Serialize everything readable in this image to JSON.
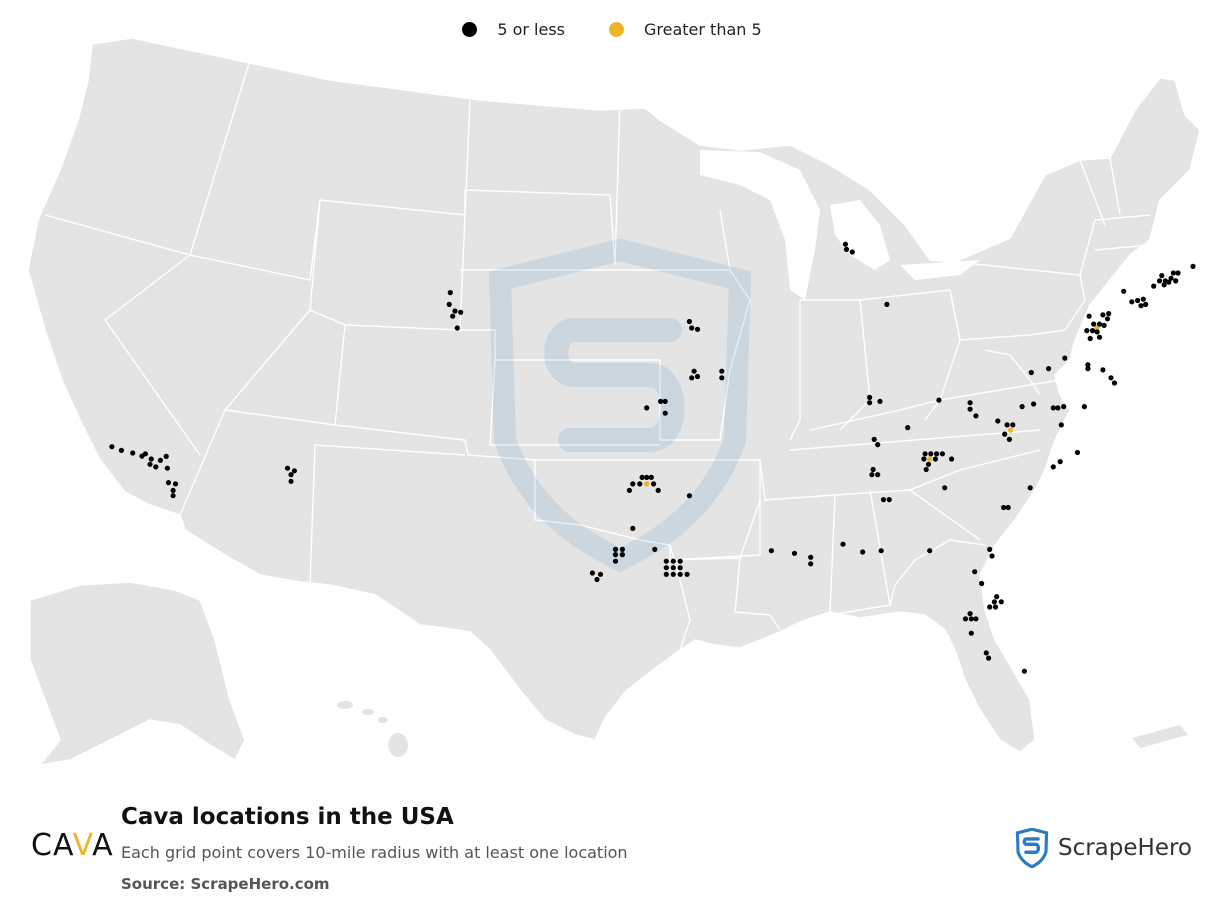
{
  "legend": {
    "items": [
      {
        "label": "5 or less",
        "color": "#000000"
      },
      {
        "label": "Greater than 5",
        "color": "#f0b323"
      }
    ]
  },
  "map": {
    "land_color": "#e4e4e4",
    "border_color": "#ffffff",
    "watermark_icon": "scrapehero-shield-icon"
  },
  "logo": {
    "part1": "CA",
    "accent": "V",
    "part2": "A"
  },
  "title": "Cava locations in the USA",
  "subtitle": "Each grid point covers 10-mile radius with at least one location",
  "source": "Source: ScrapeHero.com",
  "brand": {
    "name": "ScrapeHero",
    "icon": "scrapehero-shield-icon",
    "color": "#2a7bbf"
  },
  "locations": [
    {
      "lat": 34.42,
      "lon": -119.7,
      "cat": "low"
    },
    {
      "lat": 34.28,
      "lon": -119.29,
      "cat": "low"
    },
    {
      "lat": 34.18,
      "lon": -118.8,
      "cat": "low"
    },
    {
      "lat": 34.15,
      "lon": -118.25,
      "cat": "low"
    },
    {
      "lat": 34.06,
      "lon": -118.4,
      "cat": "low"
    },
    {
      "lat": 33.95,
      "lon": -118.0,
      "cat": "low"
    },
    {
      "lat": 33.9,
      "lon": -117.6,
      "cat": "low"
    },
    {
      "lat": 34.05,
      "lon": -117.35,
      "cat": "low"
    },
    {
      "lat": 33.75,
      "lon": -118.05,
      "cat": "low"
    },
    {
      "lat": 33.65,
      "lon": -117.8,
      "cat": "low"
    },
    {
      "lat": 33.6,
      "lon": -117.3,
      "cat": "low"
    },
    {
      "lat": 33.05,
      "lon": -117.25,
      "cat": "low"
    },
    {
      "lat": 33.0,
      "lon": -116.95,
      "cat": "low"
    },
    {
      "lat": 32.75,
      "lon": -117.05,
      "cat": "low"
    },
    {
      "lat": 32.55,
      "lon": -117.05,
      "cat": "low"
    },
    {
      "lat": 33.6,
      "lon": -112.1,
      "cat": "low"
    },
    {
      "lat": 33.5,
      "lon": -111.8,
      "cat": "low"
    },
    {
      "lat": 33.35,
      "lon": -111.95,
      "cat": "low"
    },
    {
      "lat": 33.1,
      "lon": -111.95,
      "cat": "low"
    },
    {
      "lat": 40.3,
      "lon": -105.05,
      "cat": "low"
    },
    {
      "lat": 39.85,
      "lon": -105.1,
      "cat": "low"
    },
    {
      "lat": 39.6,
      "lon": -104.85,
      "cat": "low"
    },
    {
      "lat": 39.4,
      "lon": -104.95,
      "cat": "low"
    },
    {
      "lat": 39.55,
      "lon": -104.6,
      "cat": "low"
    },
    {
      "lat": 38.95,
      "lon": -104.75,
      "cat": "low"
    },
    {
      "lat": 39.2,
      "lon": -94.7,
      "cat": "low"
    },
    {
      "lat": 38.95,
      "lon": -94.6,
      "cat": "low"
    },
    {
      "lat": 38.9,
      "lon": -94.35,
      "cat": "low"
    },
    {
      "lat": 37.3,
      "lon": -94.5,
      "cat": "low"
    },
    {
      "lat": 37.05,
      "lon": -94.6,
      "cat": "low"
    },
    {
      "lat": 37.1,
      "lon": -94.35,
      "cat": "low"
    },
    {
      "lat": 37.3,
      "lon": -93.3,
      "cat": "low"
    },
    {
      "lat": 37.05,
      "lon": -93.3,
      "cat": "low"
    },
    {
      "lat": 36.15,
      "lon": -95.95,
      "cat": "low"
    },
    {
      "lat": 36.15,
      "lon": -95.75,
      "cat": "low"
    },
    {
      "lat": 35.9,
      "lon": -96.55,
      "cat": "low"
    },
    {
      "lat": 35.7,
      "lon": -95.75,
      "cat": "low"
    },
    {
      "lat": 33.25,
      "lon": -96.75,
      "cat": "low"
    },
    {
      "lat": 33.25,
      "lon": -96.55,
      "cat": "low"
    },
    {
      "lat": 33.25,
      "lon": -96.35,
      "cat": "low"
    },
    {
      "lat": 33.0,
      "lon": -97.15,
      "cat": "low"
    },
    {
      "lat": 33.0,
      "lon": -96.85,
      "cat": "low"
    },
    {
      "lat": 33.0,
      "lon": -96.55,
      "cat": "high"
    },
    {
      "lat": 33.0,
      "lon": -96.25,
      "cat": "low"
    },
    {
      "lat": 32.75,
      "lon": -97.3,
      "cat": "low"
    },
    {
      "lat": 32.75,
      "lon": -96.05,
      "cat": "low"
    },
    {
      "lat": 32.55,
      "lon": -94.7,
      "cat": "low"
    },
    {
      "lat": 31.3,
      "lon": -97.15,
      "cat": "low"
    },
    {
      "lat": 30.5,
      "lon": -97.9,
      "cat": "low"
    },
    {
      "lat": 30.5,
      "lon": -97.6,
      "cat": "low"
    },
    {
      "lat": 30.3,
      "lon": -97.9,
      "cat": "low"
    },
    {
      "lat": 30.3,
      "lon": -97.6,
      "cat": "low"
    },
    {
      "lat": 30.05,
      "lon": -97.9,
      "cat": "low"
    },
    {
      "lat": 30.5,
      "lon": -96.2,
      "cat": "low"
    },
    {
      "lat": 29.6,
      "lon": -98.9,
      "cat": "low"
    },
    {
      "lat": 29.55,
      "lon": -98.55,
      "cat": "low"
    },
    {
      "lat": 29.35,
      "lon": -98.7,
      "cat": "low"
    },
    {
      "lat": 30.05,
      "lon": -95.7,
      "cat": "low"
    },
    {
      "lat": 30.05,
      "lon": -95.4,
      "cat": "low"
    },
    {
      "lat": 30.05,
      "lon": -95.1,
      "cat": "low"
    },
    {
      "lat": 29.8,
      "lon": -95.7,
      "cat": "low"
    },
    {
      "lat": 29.8,
      "lon": -95.4,
      "cat": "low"
    },
    {
      "lat": 29.8,
      "lon": -95.1,
      "cat": "low"
    },
    {
      "lat": 29.55,
      "lon": -95.7,
      "cat": "low"
    },
    {
      "lat": 29.55,
      "lon": -95.4,
      "cat": "low"
    },
    {
      "lat": 29.55,
      "lon": -95.1,
      "cat": "low"
    },
    {
      "lat": 29.55,
      "lon": -94.8,
      "cat": "low"
    },
    {
      "lat": 30.45,
      "lon": -91.15,
      "cat": "low"
    },
    {
      "lat": 30.35,
      "lon": -90.15,
      "cat": "low"
    },
    {
      "lat": 30.2,
      "lon": -89.45,
      "cat": "low"
    },
    {
      "lat": 29.95,
      "lon": -89.45,
      "cat": "low"
    },
    {
      "lat": 42.15,
      "lon": -87.95,
      "cat": "low"
    },
    {
      "lat": 41.95,
      "lon": -87.9,
      "cat": "low"
    },
    {
      "lat": 41.85,
      "lon": -87.65,
      "cat": "low"
    },
    {
      "lat": 39.85,
      "lon": -86.15,
      "cat": "low"
    },
    {
      "lat": 36.3,
      "lon": -86.9,
      "cat": "low"
    },
    {
      "lat": 36.1,
      "lon": -86.9,
      "cat": "low"
    },
    {
      "lat": 36.15,
      "lon": -86.45,
      "cat": "low"
    },
    {
      "lat": 36.2,
      "lon": -83.9,
      "cat": "low"
    },
    {
      "lat": 35.15,
      "lon": -85.25,
      "cat": "low"
    },
    {
      "lat": 34.7,
      "lon": -86.7,
      "cat": "low"
    },
    {
      "lat": 34.5,
      "lon": -86.55,
      "cat": "low"
    },
    {
      "lat": 33.55,
      "lon": -86.75,
      "cat": "low"
    },
    {
      "lat": 33.35,
      "lon": -86.8,
      "cat": "low"
    },
    {
      "lat": 33.35,
      "lon": -86.55,
      "cat": "low"
    },
    {
      "lat": 32.4,
      "lon": -86.3,
      "cat": "low"
    },
    {
      "lat": 32.4,
      "lon": -86.05,
      "cat": "low"
    },
    {
      "lat": 30.7,
      "lon": -88.05,
      "cat": "low"
    },
    {
      "lat": 30.4,
      "lon": -87.2,
      "cat": "low"
    },
    {
      "lat": 30.45,
      "lon": -86.4,
      "cat": "low"
    },
    {
      "lat": 34.15,
      "lon": -84.5,
      "cat": "low"
    },
    {
      "lat": 34.15,
      "lon": -84.25,
      "cat": "low"
    },
    {
      "lat": 34.15,
      "lon": -84.0,
      "cat": "low"
    },
    {
      "lat": 34.15,
      "lon": -83.75,
      "cat": "low"
    },
    {
      "lat": 33.95,
      "lon": -84.55,
      "cat": "low"
    },
    {
      "lat": 33.95,
      "lon": -84.3,
      "cat": "high"
    },
    {
      "lat": 33.95,
      "lon": -84.05,
      "cat": "low"
    },
    {
      "lat": 33.75,
      "lon": -84.35,
      "cat": "low"
    },
    {
      "lat": 33.55,
      "lon": -84.45,
      "cat": "low"
    },
    {
      "lat": 33.95,
      "lon": -83.35,
      "cat": "low"
    },
    {
      "lat": 32.85,
      "lon": -83.65,
      "cat": "low"
    },
    {
      "lat": 30.45,
      "lon": -84.3,
      "cat": "low"
    },
    {
      "lat": 30.5,
      "lon": -81.7,
      "cat": "low"
    },
    {
      "lat": 30.25,
      "lon": -81.6,
      "cat": "low"
    },
    {
      "lat": 29.65,
      "lon": -82.35,
      "cat": "low"
    },
    {
      "lat": 29.2,
      "lon": -82.05,
      "cat": "low"
    },
    {
      "lat": 28.7,
      "lon": -81.4,
      "cat": "low"
    },
    {
      "lat": 28.5,
      "lon": -81.2,
      "cat": "low"
    },
    {
      "lat": 28.5,
      "lon": -81.5,
      "cat": "low"
    },
    {
      "lat": 28.3,
      "lon": -81.45,
      "cat": "low"
    },
    {
      "lat": 28.3,
      "lon": -81.7,
      "cat": "low"
    },
    {
      "lat": 28.05,
      "lon": -82.55,
      "cat": "low"
    },
    {
      "lat": 27.85,
      "lon": -82.75,
      "cat": "low"
    },
    {
      "lat": 27.85,
      "lon": -82.5,
      "cat": "low"
    },
    {
      "lat": 27.85,
      "lon": -82.3,
      "cat": "low"
    },
    {
      "lat": 27.3,
      "lon": -82.5,
      "cat": "low"
    },
    {
      "lat": 26.55,
      "lon": -81.85,
      "cat": "low"
    },
    {
      "lat": 26.35,
      "lon": -81.75,
      "cat": "low"
    },
    {
      "lat": 25.85,
      "lon": -80.2,
      "cat": "low"
    },
    {
      "lat": 32.1,
      "lon": -81.1,
      "cat": "low"
    },
    {
      "lat": 32.1,
      "lon": -80.9,
      "cat": "low"
    },
    {
      "lat": 32.85,
      "lon": -79.95,
      "cat": "low"
    },
    {
      "lat": 33.65,
      "lon": -78.95,
      "cat": "low"
    },
    {
      "lat": 34.2,
      "lon": -77.9,
      "cat": "low"
    },
    {
      "lat": 33.85,
      "lon": -78.65,
      "cat": "low"
    },
    {
      "lat": 36.1,
      "lon": -82.55,
      "cat": "low"
    },
    {
      "lat": 35.85,
      "lon": -82.55,
      "cat": "low"
    },
    {
      "lat": 35.6,
      "lon": -82.3,
      "cat": "low"
    },
    {
      "lat": 35.4,
      "lon": -81.35,
      "cat": "low"
    },
    {
      "lat": 35.25,
      "lon": -80.95,
      "cat": "low"
    },
    {
      "lat": 35.25,
      "lon": -80.7,
      "cat": "low"
    },
    {
      "lat": 35.05,
      "lon": -80.8,
      "cat": "high"
    },
    {
      "lat": 34.9,
      "lon": -81.05,
      "cat": "low"
    },
    {
      "lat": 34.7,
      "lon": -80.85,
      "cat": "low"
    },
    {
      "lat": 35.95,
      "lon": -80.3,
      "cat": "low"
    },
    {
      "lat": 36.05,
      "lon": -79.8,
      "cat": "low"
    },
    {
      "lat": 35.9,
      "lon": -78.95,
      "cat": "low"
    },
    {
      "lat": 35.9,
      "lon": -78.75,
      "cat": "low"
    },
    {
      "lat": 35.95,
      "lon": -78.5,
      "cat": "low"
    },
    {
      "lat": 35.95,
      "lon": -77.6,
      "cat": "low"
    },
    {
      "lat": 35.25,
      "lon": -78.6,
      "cat": "low"
    },
    {
      "lat": 37.25,
      "lon": -79.9,
      "cat": "low"
    },
    {
      "lat": 37.4,
      "lon": -79.15,
      "cat": "low"
    },
    {
      "lat": 37.8,
      "lon": -78.45,
      "cat": "low"
    },
    {
      "lat": 37.55,
      "lon": -77.45,
      "cat": "low"
    },
    {
      "lat": 37.4,
      "lon": -77.45,
      "cat": "low"
    },
    {
      "lat": 37.35,
      "lon": -76.8,
      "cat": "low"
    },
    {
      "lat": 37.05,
      "lon": -76.45,
      "cat": "low"
    },
    {
      "lat": 36.85,
      "lon": -76.3,
      "cat": "low"
    },
    {
      "lat": 38.55,
      "lon": -77.35,
      "cat": "low"
    },
    {
      "lat": 38.85,
      "lon": -77.5,
      "cat": "low"
    },
    {
      "lat": 38.85,
      "lon": -77.25,
      "cat": "low"
    },
    {
      "lat": 38.95,
      "lon": -77.05,
      "cat": "high"
    },
    {
      "lat": 39.1,
      "lon": -77.2,
      "cat": "low"
    },
    {
      "lat": 39.1,
      "lon": -76.95,
      "cat": "low"
    },
    {
      "lat": 39.3,
      "lon": -76.6,
      "cat": "low"
    },
    {
      "lat": 39.05,
      "lon": -76.75,
      "cat": "low"
    },
    {
      "lat": 38.8,
      "lon": -77.05,
      "cat": "low"
    },
    {
      "lat": 38.6,
      "lon": -76.95,
      "cat": "low"
    },
    {
      "lat": 39.4,
      "lon": -77.4,
      "cat": "low"
    },
    {
      "lat": 39.45,
      "lon": -76.8,
      "cat": "low"
    },
    {
      "lat": 39.5,
      "lon": -76.55,
      "cat": "low"
    },
    {
      "lat": 40.35,
      "lon": -75.9,
      "cat": "low"
    },
    {
      "lat": 40.0,
      "lon": -75.3,
      "cat": "low"
    },
    {
      "lat": 40.05,
      "lon": -75.05,
      "cat": "low"
    },
    {
      "lat": 39.95,
      "lon": -75.55,
      "cat": "low"
    },
    {
      "lat": 39.8,
      "lon": -75.15,
      "cat": "low"
    },
    {
      "lat": 39.85,
      "lon": -74.95,
      "cat": "low"
    },
    {
      "lat": 40.55,
      "lon": -74.6,
      "cat": "low"
    },
    {
      "lat": 40.75,
      "lon": -74.35,
      "cat": "low"
    },
    {
      "lat": 40.75,
      "lon": -74.1,
      "cat": "low"
    },
    {
      "lat": 40.85,
      "lon": -73.85,
      "cat": "low"
    },
    {
      "lat": 41.05,
      "lon": -73.75,
      "cat": "low"
    },
    {
      "lat": 41.05,
      "lon": -73.55,
      "cat": "low"
    },
    {
      "lat": 40.95,
      "lon": -74.25,
      "cat": "low"
    },
    {
      "lat": 40.75,
      "lon": -73.65,
      "cat": "low"
    },
    {
      "lat": 40.7,
      "lon": -73.95,
      "cat": "low"
    },
    {
      "lat": 40.6,
      "lon": -74.15,
      "cat": "low"
    },
    {
      "lat": 41.3,
      "lon": -72.9,
      "cat": "low"
    },
    {
      "lat": 42.45,
      "lon": -71.15,
      "cat": "low"
    },
    {
      "lat": 42.35,
      "lon": -71.3,
      "cat": "low"
    },
    {
      "lat": 42.35,
      "lon": -71.05,
      "cat": "low"
    },
    {
      "lat": 42.2,
      "lon": -71.15,
      "cat": "low"
    },
    {
      "lat": 42.1,
      "lon": -70.95,
      "cat": "low"
    },
    {
      "lat": 41.85,
      "lon": -71.4,
      "cat": "low"
    }
  ]
}
